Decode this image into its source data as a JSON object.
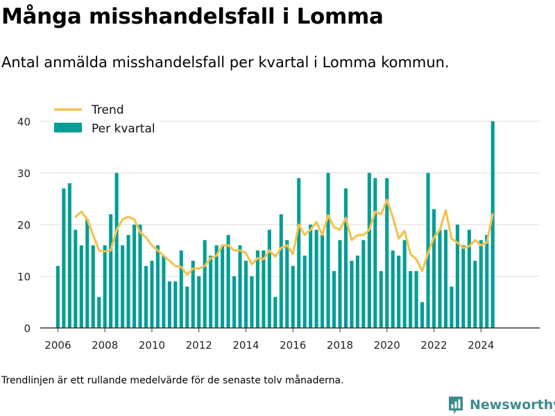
{
  "title": "Många misshandelsfall i Lomma",
  "subtitle": "Antal anmälda misshandelsfall per kvartal i Lomma kommun.",
  "footnote": "Trendlinjen är ett rullande medelvärde för de senaste tolv månaderna.",
  "brand": {
    "name": "Newsworthy",
    "icon": "bar-chart-logo-icon",
    "color": "#3f8a8d"
  },
  "colors": {
    "bar": "#009e95",
    "trend": "#f5c24f",
    "axis": "#333333",
    "grid": "#dddddd"
  },
  "chart_data": {
    "type": "bar",
    "legend_position": "top-left",
    "grid": true,
    "xlim": [
      2005.25,
      2026.5
    ],
    "ylim": [
      0,
      42
    ],
    "x_ticks": [
      2006,
      2008,
      2010,
      2012,
      2014,
      2016,
      2018,
      2020,
      2022,
      2024
    ],
    "y_ticks": [
      0,
      10,
      20,
      30,
      40
    ],
    "series": [
      {
        "name": "Per kvartal",
        "kind": "bar",
        "start": "2006-Q1",
        "values": [
          12,
          27,
          28,
          19,
          16,
          21,
          16,
          6,
          16,
          22,
          30,
          16,
          18,
          20,
          20,
          12,
          13,
          16,
          14,
          9,
          9,
          15,
          8,
          13,
          10,
          17,
          14,
          16,
          16,
          18,
          10,
          16,
          13,
          10,
          15,
          15,
          19,
          6,
          22,
          17,
          12,
          29,
          14,
          20,
          19,
          18,
          30,
          11,
          17,
          27,
          13,
          14,
          17,
          30,
          29,
          11,
          29,
          15,
          14,
          17,
          11,
          11,
          5,
          30,
          23,
          19,
          19,
          8,
          20,
          16,
          19,
          13,
          17,
          18,
          40
        ]
      },
      {
        "name": "Trend",
        "kind": "line",
        "start": "2006-Q4",
        "values": [
          21.5,
          22.5,
          21,
          18,
          15,
          14.8,
          15,
          19,
          21,
          21.5,
          21,
          18.5,
          17.5,
          16,
          15,
          14,
          13,
          12,
          11.8,
          10.3,
          11.5,
          11.5,
          12,
          13.5,
          14,
          16,
          16,
          15,
          15,
          14.5,
          12.3,
          13.5,
          13.3,
          15,
          13.8,
          15.5,
          16,
          14.3,
          20,
          18,
          19,
          20.5,
          18,
          21.8,
          19.5,
          19,
          21.3,
          17,
          18,
          18,
          19,
          22.5,
          22,
          24.8,
          21.5,
          17.3,
          18.8,
          14.3,
          13.3,
          11,
          14.5,
          17.5,
          19,
          22.8,
          17.3,
          16.5,
          15.5,
          15.8,
          17,
          16,
          16.5,
          22
        ]
      }
    ]
  }
}
